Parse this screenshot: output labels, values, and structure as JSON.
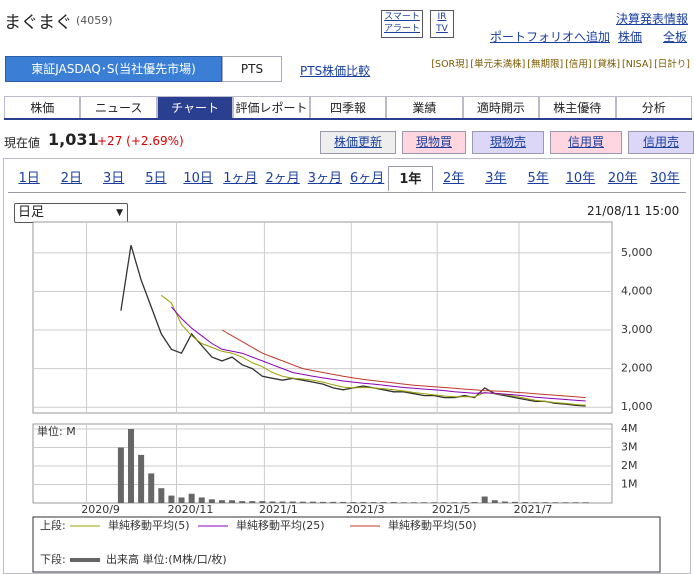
{
  "header": {
    "name": "まぐまぐ",
    "code": "(4059)",
    "buttons": [
      [
        "スマート",
        "アラート"
      ],
      [
        "IR",
        "TV"
      ]
    ],
    "links": [
      "決算発表情報",
      "ポートフォリオへ追加",
      "株価",
      "全板"
    ]
  },
  "market": {
    "tabs": [
      "東証JASDAQ･S(当社優先市場)",
      "PTS"
    ],
    "link": "PTS株価比較",
    "tags": [
      "[SOR現]",
      "[単元未満株]",
      "[無期限]",
      "[信用]",
      "[貸株]",
      "[NISA]",
      "[日計り]"
    ]
  },
  "nav": {
    "items": [
      "株価",
      "ニュース",
      "チャート",
      "評価レポート",
      "四季報",
      "業績",
      "適時開示",
      "株主優待",
      "分析"
    ],
    "active": 2
  },
  "quote": {
    "label": "現在値",
    "price": "1,031",
    "change": "+27 (+2.69%)",
    "actions": [
      "株価更新",
      "現物買",
      "現物売",
      "信用買",
      "信用売"
    ]
  },
  "periods": {
    "items": [
      "1日",
      "2日",
      "3日",
      "5日",
      "10日",
      "1ヶ月",
      "2ヶ月",
      "3ヶ月",
      "6ヶ月",
      "1年",
      "2年",
      "3年",
      "5年",
      "10年",
      "20年",
      "30年"
    ],
    "active": 9
  },
  "select": "日足",
  "timestamp": "21/08/11 15:00",
  "legend": {
    "upper": "上段:",
    "lower": "下段:"
  },
  "chart_data": [
    {
      "type": "line",
      "ylim": [
        850,
        5800
      ],
      "xlim": [
        -8.7,
        48.6
      ],
      "grid": true,
      "yticks": [
        {
          "value": 1000,
          "label": "1,000"
        },
        {
          "value": 2000,
          "label": "2,000"
        },
        {
          "value": 3000,
          "label": "3,000"
        },
        {
          "value": 4000,
          "label": "4,000"
        },
        {
          "value": 5000,
          "label": "5,000"
        }
      ],
      "series": [
        {
          "color": "#333333",
          "values": [
            3500,
            5200,
            4300,
            3600,
            2900,
            2500,
            2400,
            2900,
            2600,
            2300,
            2200,
            2300,
            2100,
            2000,
            1800,
            1750,
            1700,
            1750,
            1700,
            1650,
            1600,
            1500,
            1450,
            1500,
            1550,
            1500,
            1450,
            1400,
            1400,
            1350,
            1300,
            1300,
            1250,
            1250,
            1300,
            1250,
            1500,
            1350,
            1300,
            1250,
            1200,
            1150,
            1150,
            1100,
            1080,
            1050,
            1031
          ]
        },
        {
          "name": "単純移動平均(5)",
          "color": "#9aa000",
          "values": [
            null,
            null,
            null,
            null,
            3900,
            3700,
            3150,
            2850,
            2650,
            2550,
            2450,
            2400,
            2300,
            2150,
            2050,
            1900,
            1800,
            1750,
            1730,
            1700,
            1650,
            1580,
            1520,
            1500,
            1510,
            1500,
            1480,
            1450,
            1420,
            1380,
            1350,
            1320,
            1290,
            1270,
            1270,
            1270,
            1380,
            1350,
            1330,
            1280,
            1230,
            1180,
            1150,
            1120,
            1100,
            1070,
            1050
          ]
        },
        {
          "name": "単純移動平均(25)",
          "color": "#8a00b8",
          "values": [
            null,
            null,
            null,
            null,
            null,
            3600,
            3300,
            3050,
            2850,
            2650,
            2500,
            2450,
            2400,
            2300,
            2200,
            2100,
            2000,
            1900,
            1850,
            1800,
            1760,
            1720,
            1680,
            1650,
            1620,
            1600,
            1570,
            1540,
            1510,
            1490,
            1470,
            1450,
            1430,
            1400,
            1380,
            1360,
            1370,
            1360,
            1340,
            1320,
            1290,
            1260,
            1240,
            1220,
            1200,
            1180,
            1160
          ]
        },
        {
          "name": "単純移動平均(50)",
          "color": "#c0392b",
          "values": [
            null,
            null,
            null,
            null,
            null,
            null,
            null,
            null,
            null,
            null,
            3000,
            2850,
            2700,
            2550,
            2400,
            2300,
            2200,
            2100,
            2000,
            1950,
            1900,
            1850,
            1800,
            1760,
            1720,
            1690,
            1660,
            1630,
            1600,
            1570,
            1550,
            1530,
            1510,
            1490,
            1470,
            1450,
            1430,
            1420,
            1410,
            1390,
            1370,
            1350,
            1330,
            1310,
            1290,
            1270,
            1250
          ]
        }
      ]
    },
    {
      "type": "bar",
      "unit_label": "単位: M",
      "ylim": [
        0,
        4.27
      ],
      "xlim": [
        -8.7,
        48.6
      ],
      "grid": true,
      "yticks": [
        {
          "value": 1,
          "label": "1M"
        },
        {
          "value": 2,
          "label": "2M"
        },
        {
          "value": 3,
          "label": "3M"
        },
        {
          "value": 4,
          "label": "4M"
        }
      ],
      "xticks": [
        {
          "value": -3.4,
          "label": "2020/9"
        },
        {
          "value": 5.5,
          "label": "2020/11"
        },
        {
          "value": 14.2,
          "label": "2021/1"
        },
        {
          "value": 22.8,
          "label": "2021/3"
        },
        {
          "value": 31.3,
          "label": "2021/5"
        },
        {
          "value": 39.4,
          "label": "2021/7"
        }
      ],
      "series": [
        {
          "name": "出来高 単位:(M株/口/枚)",
          "color": "#666666",
          "values": [
            3.0,
            4.0,
            2.6,
            1.6,
            0.8,
            0.4,
            0.3,
            0.5,
            0.3,
            0.2,
            0.15,
            0.15,
            0.1,
            0.1,
            0.1,
            0.08,
            0.08,
            0.08,
            0.07,
            0.07,
            0.06,
            0.06,
            0.06,
            0.05,
            0.05,
            0.05,
            0.05,
            0.05,
            0.04,
            0.04,
            0.04,
            0.04,
            0.04,
            0.04,
            0.05,
            0.05,
            0.35,
            0.15,
            0.08,
            0.06,
            0.05,
            0.04,
            0.04,
            0.04,
            0.04,
            0.04,
            0.04
          ]
        }
      ]
    }
  ]
}
